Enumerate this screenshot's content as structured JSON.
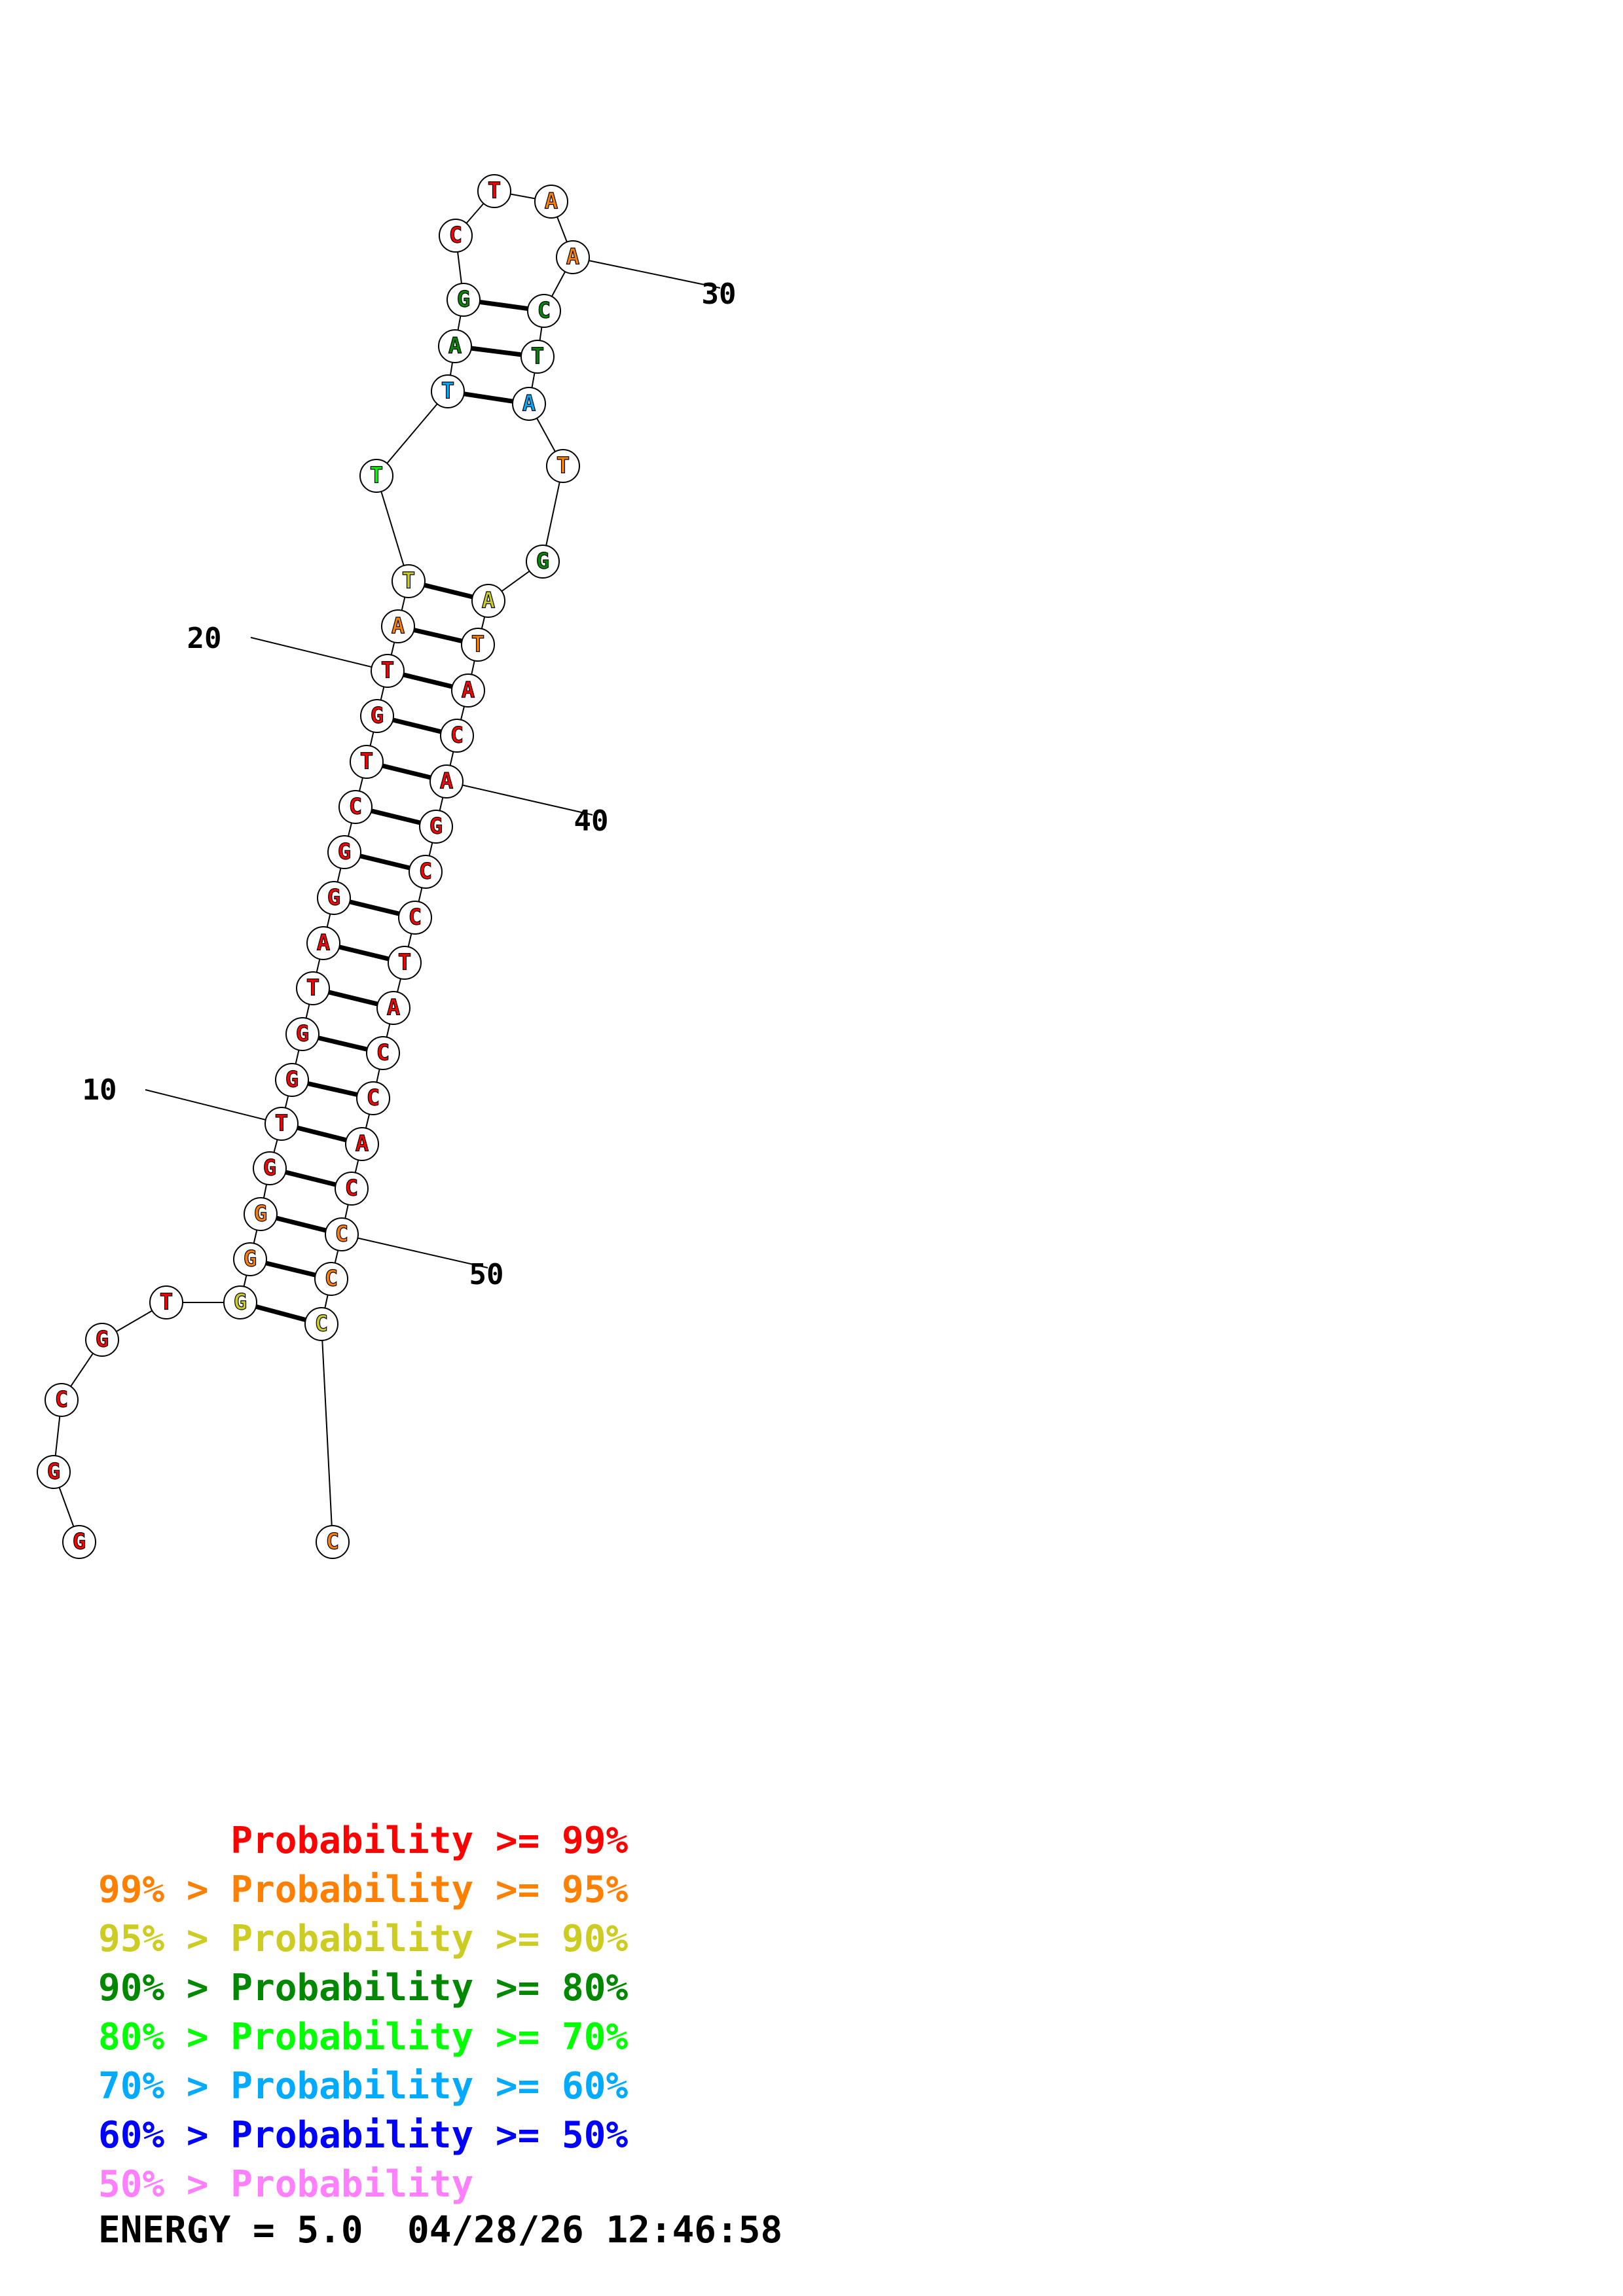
{
  "colors": {
    "p99": "#ff0000",
    "p95": "#ff8000",
    "p90": "#cccc22",
    "p80": "#008800",
    "p70": "#00ff00",
    "p60": "#00aaff",
    "p50": "#0000ff",
    "plow": "#ff80ff"
  },
  "nucleotides": [
    {
      "n": 1,
      "base": "G",
      "level": "p99"
    },
    {
      "n": 2,
      "base": "G",
      "level": "p99"
    },
    {
      "n": 3,
      "base": "C",
      "level": "p99"
    },
    {
      "n": 4,
      "base": "G",
      "level": "p99"
    },
    {
      "n": 5,
      "base": "T",
      "level": "p99"
    },
    {
      "n": 6,
      "base": "G",
      "level": "p90"
    },
    {
      "n": 7,
      "base": "G",
      "level": "p95"
    },
    {
      "n": 8,
      "base": "G",
      "level": "p95"
    },
    {
      "n": 9,
      "base": "G",
      "level": "p99"
    },
    {
      "n": 10,
      "base": "T",
      "level": "p99"
    },
    {
      "n": 11,
      "base": "G",
      "level": "p99"
    },
    {
      "n": 12,
      "base": "G",
      "level": "p99"
    },
    {
      "n": 13,
      "base": "T",
      "level": "p99"
    },
    {
      "n": 14,
      "base": "A",
      "level": "p99"
    },
    {
      "n": 15,
      "base": "G",
      "level": "p99"
    },
    {
      "n": 16,
      "base": "G",
      "level": "p99"
    },
    {
      "n": 17,
      "base": "C",
      "level": "p99"
    },
    {
      "n": 18,
      "base": "T",
      "level": "p99"
    },
    {
      "n": 19,
      "base": "G",
      "level": "p99"
    },
    {
      "n": 20,
      "base": "T",
      "level": "p99"
    },
    {
      "n": 21,
      "base": "A",
      "level": "p95"
    },
    {
      "n": 22,
      "base": "T",
      "level": "p90"
    },
    {
      "n": 23,
      "base": "T",
      "level": "p70"
    },
    {
      "n": 24,
      "base": "T",
      "level": "p60"
    },
    {
      "n": 25,
      "base": "A",
      "level": "p80"
    },
    {
      "n": 26,
      "base": "G",
      "level": "p80"
    },
    {
      "n": 27,
      "base": "C",
      "level": "p99"
    },
    {
      "n": 28,
      "base": "T",
      "level": "p99"
    },
    {
      "n": 29,
      "base": "A",
      "level": "p95"
    },
    {
      "n": 30,
      "base": "A",
      "level": "p95"
    },
    {
      "n": 31,
      "base": "C",
      "level": "p80"
    },
    {
      "n": 32,
      "base": "T",
      "level": "p80"
    },
    {
      "n": 33,
      "base": "A",
      "level": "p60"
    },
    {
      "n": 34,
      "base": "T",
      "level": "p95"
    },
    {
      "n": 35,
      "base": "G",
      "level": "p80"
    },
    {
      "n": 36,
      "base": "A",
      "level": "p90"
    },
    {
      "n": 37,
      "base": "T",
      "level": "p95"
    },
    {
      "n": 38,
      "base": "A",
      "level": "p99"
    },
    {
      "n": 39,
      "base": "C",
      "level": "p99"
    },
    {
      "n": 40,
      "base": "A",
      "level": "p99"
    },
    {
      "n": 41,
      "base": "G",
      "level": "p99"
    },
    {
      "n": 42,
      "base": "C",
      "level": "p99"
    },
    {
      "n": 43,
      "base": "C",
      "level": "p99"
    },
    {
      "n": 44,
      "base": "T",
      "level": "p99"
    },
    {
      "n": 45,
      "base": "A",
      "level": "p99"
    },
    {
      "n": 46,
      "base": "C",
      "level": "p99"
    },
    {
      "n": 47,
      "base": "C",
      "level": "p99"
    },
    {
      "n": 48,
      "base": "A",
      "level": "p99"
    },
    {
      "n": 49,
      "base": "C",
      "level": "p99"
    },
    {
      "n": 50,
      "base": "C",
      "level": "p95"
    },
    {
      "n": 51,
      "base": "C",
      "level": "p95"
    },
    {
      "n": 52,
      "base": "C",
      "level": "p90"
    },
    {
      "n": 53,
      "base": "C",
      "level": "p95"
    }
  ],
  "pairs": [
    [
      6,
      52
    ],
    [
      7,
      51
    ],
    [
      8,
      50
    ],
    [
      9,
      49
    ],
    [
      10,
      48
    ],
    [
      11,
      47
    ],
    [
      12,
      46
    ],
    [
      13,
      45
    ],
    [
      14,
      44
    ],
    [
      15,
      43
    ],
    [
      16,
      42
    ],
    [
      17,
      41
    ],
    [
      18,
      40
    ],
    [
      19,
      39
    ],
    [
      20,
      38
    ],
    [
      21,
      37
    ],
    [
      22,
      36
    ],
    [
      24,
      33
    ],
    [
      25,
      32
    ],
    [
      26,
      31
    ]
  ],
  "position_labels": [
    {
      "text": "10",
      "target": 10
    },
    {
      "text": "20",
      "target": 20
    },
    {
      "text": "30",
      "target": 30
    },
    {
      "text": "40",
      "target": 40
    },
    {
      "text": "50",
      "target": 50
    }
  ],
  "legend": [
    {
      "prefix": "",
      "text": "Probability >= 99%",
      "level": "p99"
    },
    {
      "prefix": "99% > ",
      "text": "Probability >= 95%",
      "level": "p95"
    },
    {
      "prefix": "95% > ",
      "text": "Probability >= 90%",
      "level": "p90"
    },
    {
      "prefix": "90% > ",
      "text": "Probability >= 80%",
      "level": "p80"
    },
    {
      "prefix": "80% > ",
      "text": "Probability >= 70%",
      "level": "p70"
    },
    {
      "prefix": "70% > ",
      "text": "Probability >= 60%",
      "level": "p60"
    },
    {
      "prefix": "60% > ",
      "text": "Probability >= 50%",
      "level": "p50"
    },
    {
      "prefix": "50% > ",
      "text": "Probability",
      "level": "plow"
    }
  ],
  "footer": {
    "energy": "ENERGY = 5.0",
    "datetime": "04/28/26 12:46:58"
  }
}
